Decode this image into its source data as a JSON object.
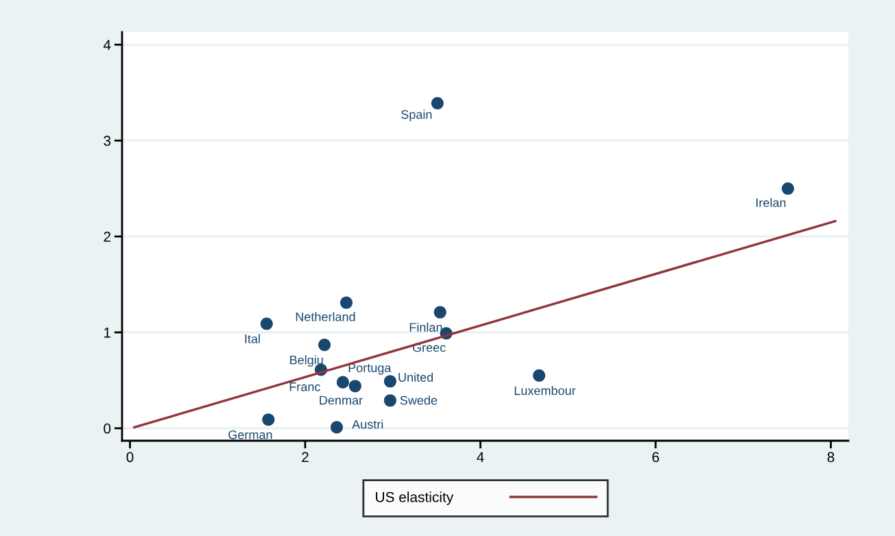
{
  "chart_data": {
    "type": "scatter",
    "xlim": [
      -0.09,
      8.2
    ],
    "ylim": [
      -0.13,
      4.13
    ],
    "xticks": [
      0,
      2,
      4,
      6,
      8
    ],
    "yticks": [
      0,
      1,
      2,
      3,
      4
    ],
    "grid": "y",
    "legend": "bottom",
    "series": [
      {
        "marker": "circle",
        "color": "#1a476f",
        "x": [
          3.51,
          7.51,
          2.47,
          3.54,
          1.56,
          3.61,
          2.22,
          2.18,
          2.43,
          2.57,
          2.97,
          2.97,
          4.67,
          1.58,
          2.36
        ],
        "values": [
          3.39,
          2.5,
          1.31,
          1.21,
          1.09,
          0.99,
          0.87,
          0.61,
          0.48,
          0.44,
          0.49,
          0.29,
          0.55,
          0.09,
          0.01
        ]
      },
      {
        "type": "line",
        "name": "US elasticity",
        "color": "#90353b",
        "x": [
          0.05,
          8.05
        ],
        "values": [
          0.01,
          2.16
        ]
      }
    ],
    "annotations": [
      {
        "text": "Spain",
        "x": 3.51,
        "y": 3.39
      },
      {
        "text": "Irelan",
        "x": 7.51,
        "y": 2.5
      },
      {
        "text": "Netherland",
        "x": 2.47,
        "y": 1.31
      },
      {
        "text": "Finlan",
        "x": 3.54,
        "y": 1.21
      },
      {
        "text": "Ital",
        "x": 1.56,
        "y": 1.09
      },
      {
        "text": "Greec",
        "x": 3.61,
        "y": 0.99
      },
      {
        "text": "Belgiu",
        "x": 2.22,
        "y": 0.87
      },
      {
        "text": "Franc",
        "x": 2.18,
        "y": 0.61
      },
      {
        "text": "Portuga",
        "x": 2.43,
        "y": 0.48
      },
      {
        "text": "Denmar",
        "x": 2.57,
        "y": 0.44
      },
      {
        "text": "United",
        "x": 2.97,
        "y": 0.49
      },
      {
        "text": "Swede",
        "x": 2.97,
        "y": 0.29
      },
      {
        "text": "Luxembour",
        "x": 4.67,
        "y": 0.55
      },
      {
        "text": "German",
        "x": 1.58,
        "y": 0.09
      },
      {
        "text": "Austri",
        "x": 2.36,
        "y": 0.01
      }
    ]
  }
}
